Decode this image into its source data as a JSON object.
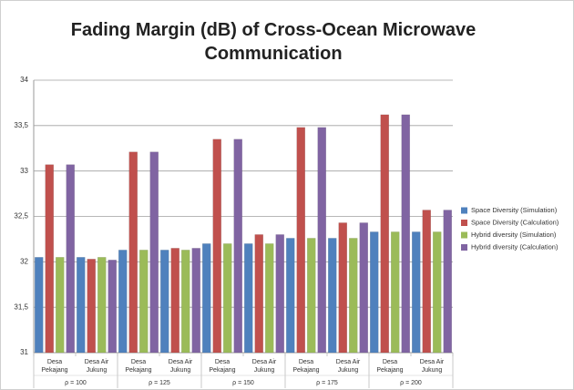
{
  "chart_data": {
    "type": "bar",
    "title": "Fading Margin (dB) of Cross-Ocean Microwave Communication",
    "categories": [
      "Desa Pekajang",
      "Desa Air Jukung",
      "Desa Pekajang",
      "Desa Air Jukung",
      "Desa Pekajang",
      "Desa Air Jukung",
      "Desa Pekajang",
      "Desa Air Jukung",
      "Desa Pekajang",
      "Desa Air Jukung"
    ],
    "groups": [
      "ρ = 100",
      "ρ = 125",
      "ρ = 150",
      "ρ = 175",
      "ρ = 200"
    ],
    "series": [
      {
        "name": "Space Diversity (Simulation)",
        "color": "#4f81bd",
        "values": [
          32.05,
          32.05,
          32.13,
          32.13,
          32.2,
          32.2,
          32.26,
          32.26,
          32.33,
          32.33
        ]
      },
      {
        "name": "Space Diversity (Calculation)",
        "color": "#c0504d",
        "values": [
          33.07,
          32.03,
          33.21,
          32.15,
          33.35,
          32.3,
          33.48,
          32.43,
          33.62,
          32.57
        ]
      },
      {
        "name": "Hybrid diversity (Simulation)",
        "color": "#9bbb59",
        "values": [
          32.05,
          32.05,
          32.13,
          32.13,
          32.2,
          32.2,
          32.26,
          32.26,
          32.33,
          32.33
        ]
      },
      {
        "name": "Hybrid diversity (Calculation)",
        "color": "#8064a2",
        "values": [
          33.07,
          32.02,
          33.21,
          32.15,
          33.35,
          32.3,
          33.48,
          32.43,
          33.62,
          32.57
        ]
      }
    ],
    "ylim": [
      31,
      34
    ],
    "yticks": [
      31,
      {
        "value": 31.5,
        "label": "31,5"
      },
      32,
      {
        "value": 32.5,
        "label": "32,5"
      },
      33,
      {
        "value": 33.5,
        "label": "33,5"
      },
      34
    ],
    "grid": true,
    "legend": "right"
  }
}
